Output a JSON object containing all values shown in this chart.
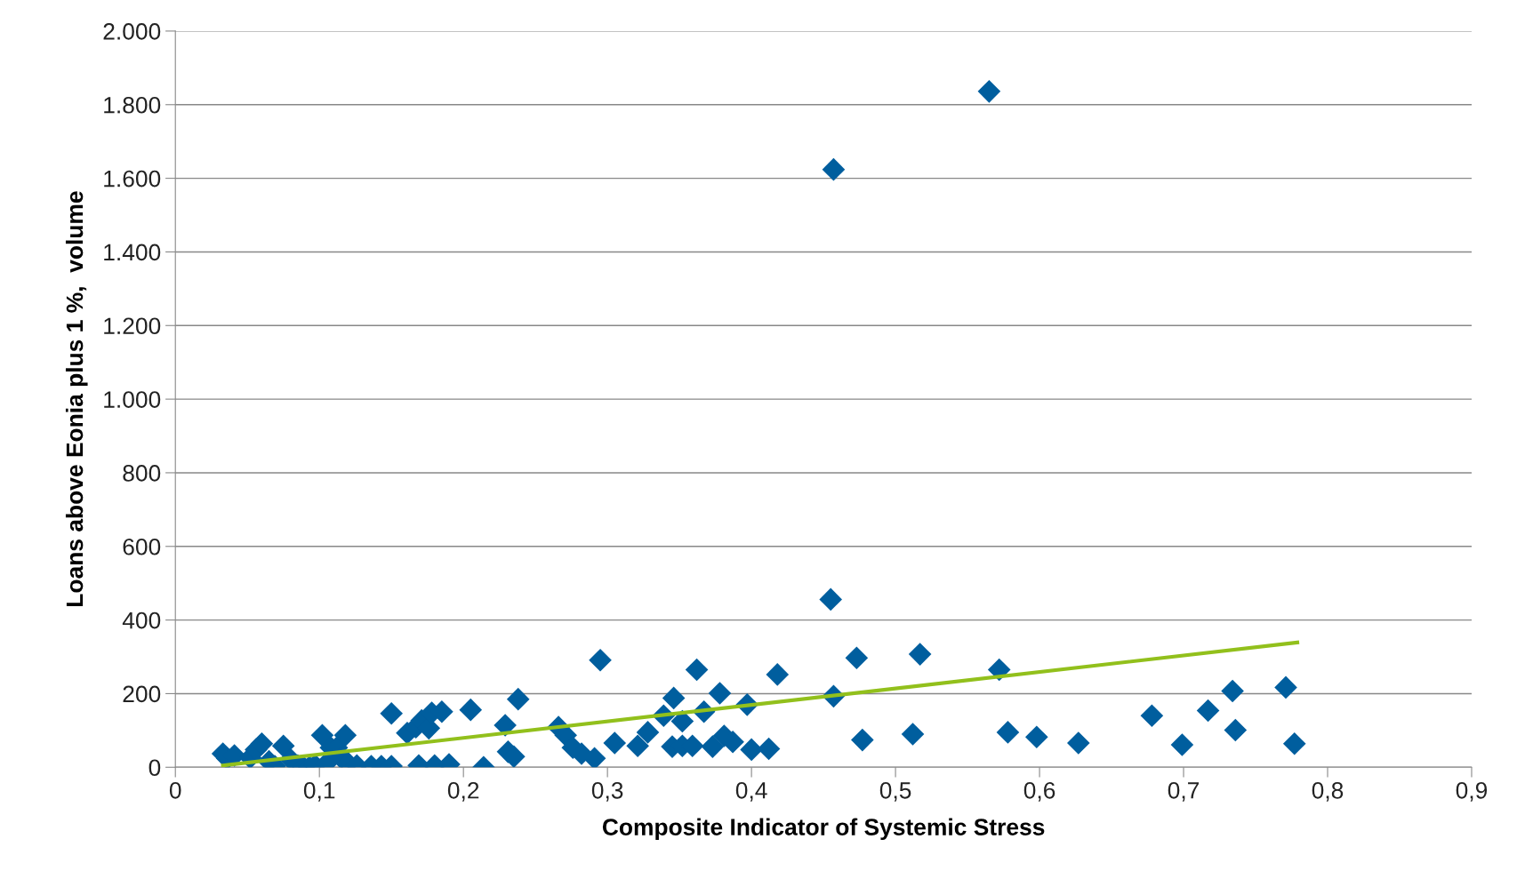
{
  "chart_data": {
    "type": "scatter",
    "xlabel": "Composite Indicator of Systemic Stress",
    "ylabel": "Loans above Eonia plus 1 %,  volume",
    "xlim": [
      0,
      0.9
    ],
    "ylim": [
      0,
      2000
    ],
    "xticks": [
      {
        "value": 0,
        "label": "0"
      },
      {
        "value": 0.1,
        "label": "0,1"
      },
      {
        "value": 0.2,
        "label": "0,2"
      },
      {
        "value": 0.3,
        "label": "0,3"
      },
      {
        "value": 0.4,
        "label": "0,4"
      },
      {
        "value": 0.5,
        "label": "0,5"
      },
      {
        "value": 0.6,
        "label": "0,6"
      },
      {
        "value": 0.7,
        "label": "0,7"
      },
      {
        "value": 0.8,
        "label": "0,8"
      },
      {
        "value": 0.9,
        "label": "0,9"
      }
    ],
    "yticks": [
      0,
      200,
      400,
      600,
      800,
      {
        "value": 1000,
        "label": "1.000"
      },
      {
        "value": 1200,
        "label": "1.200"
      },
      {
        "value": 1400,
        "label": "1.400"
      },
      {
        "value": 1600,
        "label": "1.600"
      },
      {
        "value": 1800,
        "label": "1.800"
      },
      {
        "value": 2000,
        "label": "2.000"
      }
    ],
    "grid": "y",
    "legend": false,
    "series": [
      {
        "color": "#005e9e",
        "marker": "diamond",
        "x": [
          0.033,
          0.036,
          0.041,
          0.052,
          0.056,
          0.06,
          0.065,
          0.069,
          0.075,
          0.08,
          0.085,
          0.089,
          0.093,
          0.097,
          0.102,
          0.105,
          0.108,
          0.112,
          0.115,
          0.118,
          0.12,
          0.126,
          0.136,
          0.143,
          0.15,
          0.15,
          0.161,
          0.167,
          0.169,
          0.171,
          0.176,
          0.178,
          0.18,
          0.185,
          0.19,
          0.205,
          0.214,
          0.229,
          0.231,
          0.235,
          0.238,
          0.266,
          0.271,
          0.276,
          0.282,
          0.291,
          0.295,
          0.305,
          0.321,
          0.328,
          0.339,
          0.345,
          0.346,
          0.352,
          0.352,
          0.359,
          0.362,
          0.367,
          0.373,
          0.378,
          0.381,
          0.387,
          0.397,
          0.4,
          0.412,
          0.418,
          0.455,
          0.457,
          0.457,
          0.473,
          0.477,
          0.512,
          0.517,
          0.565,
          0.572,
          0.578,
          0.598,
          0.627,
          0.678,
          0.699,
          0.717,
          0.734,
          0.736,
          0.771,
          0.777
        ],
        "values": [
          37,
          24,
          32,
          26,
          48,
          64,
          16,
          3,
          58,
          21,
          5,
          0,
          0,
          5,
          87,
          11,
          53,
          53,
          26,
          87,
          11,
          5,
          3,
          3,
          146,
          3,
          93,
          109,
          5,
          127,
          106,
          148,
          5,
          151,
          8,
          156,
          0,
          114,
          42,
          29,
          185,
          109,
          87,
          53,
          37,
          24,
          291,
          66,
          58,
          95,
          140,
          56,
          188,
          58,
          125,
          58,
          265,
          151,
          56,
          201,
          85,
          69,
          170,
          48,
          50,
          252,
          456,
          1624,
          193,
          297,
          74,
          90,
          307,
          1836,
          265,
          95,
          82,
          66,
          140,
          61,
          154,
          207,
          101,
          217,
          64
        ]
      },
      {
        "type": "line",
        "color": "#92c01c",
        "marker": "none",
        "line_style": "solid",
        "x": [
          0.033,
          0.779
        ],
        "values": [
          5,
          339
        ]
      }
    ]
  }
}
